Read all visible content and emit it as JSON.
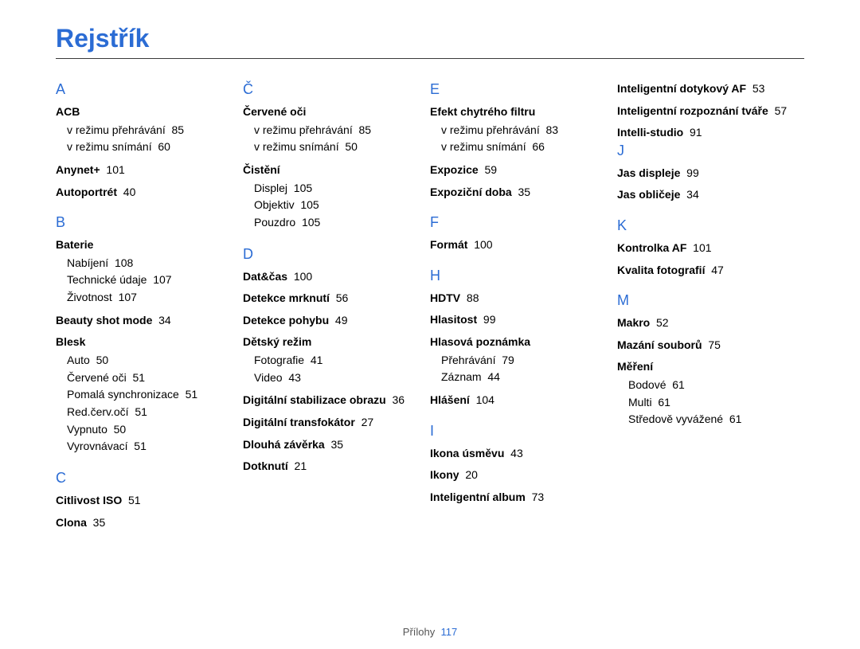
{
  "title": "Rejstřík",
  "footer": {
    "label": "Přílohy",
    "page": "117"
  },
  "colors": {
    "accent": "#2b6cd4",
    "text": "#000000",
    "rule": "#3a3a3a",
    "footer": "#555555"
  },
  "columns": [
    [
      {
        "type": "letter",
        "text": "A"
      },
      {
        "type": "head",
        "text": "ACB"
      },
      {
        "type": "sub",
        "text": "v režimu přehrávání",
        "page": "85"
      },
      {
        "type": "sub",
        "text": "v režimu snímání",
        "page": "60"
      },
      {
        "type": "entry",
        "text": "Anynet+",
        "page": "101"
      },
      {
        "type": "entry",
        "text": "Autoportrét",
        "page": "40"
      },
      {
        "type": "letter",
        "text": "B"
      },
      {
        "type": "head",
        "text": "Baterie"
      },
      {
        "type": "sub",
        "text": "Nabíjení",
        "page": "108"
      },
      {
        "type": "sub",
        "text": "Technické údaje",
        "page": "107"
      },
      {
        "type": "sub",
        "text": "Životnost",
        "page": "107"
      },
      {
        "type": "entry",
        "text": "Beauty shot mode",
        "page": "34"
      },
      {
        "type": "head",
        "text": "Blesk"
      },
      {
        "type": "sub",
        "text": "Auto",
        "page": "50"
      },
      {
        "type": "sub",
        "text": "Červené oči",
        "page": "51"
      },
      {
        "type": "sub",
        "text": "Pomalá synchronizace",
        "page": "51"
      },
      {
        "type": "sub",
        "text": "Red.červ.očí",
        "page": "51"
      },
      {
        "type": "sub",
        "text": "Vypnuto",
        "page": "50"
      },
      {
        "type": "sub",
        "text": "Vyrovnávací",
        "page": "51"
      },
      {
        "type": "letter",
        "text": "C"
      },
      {
        "type": "entry",
        "text": "Citlivost ISO",
        "page": "51"
      },
      {
        "type": "entry",
        "text": "Clona",
        "page": "35"
      }
    ],
    [
      {
        "type": "letter",
        "text": "Č"
      },
      {
        "type": "head",
        "text": "Červené oči"
      },
      {
        "type": "sub",
        "text": "v režimu přehrávání",
        "page": "85"
      },
      {
        "type": "sub",
        "text": "v režimu snímání",
        "page": "50"
      },
      {
        "type": "head",
        "text": "Čistění"
      },
      {
        "type": "sub",
        "text": "Displej",
        "page": "105"
      },
      {
        "type": "sub",
        "text": "Objektiv",
        "page": "105"
      },
      {
        "type": "sub",
        "text": "Pouzdro",
        "page": "105"
      },
      {
        "type": "letter",
        "text": "D"
      },
      {
        "type": "entry",
        "text": "Dat&čas",
        "page": "100"
      },
      {
        "type": "entry",
        "text": "Detekce mrknutí",
        "page": "56"
      },
      {
        "type": "entry",
        "text": "Detekce pohybu",
        "page": "49"
      },
      {
        "type": "head",
        "text": "Dětský režim"
      },
      {
        "type": "sub",
        "text": "Fotografie",
        "page": "41"
      },
      {
        "type": "sub",
        "text": "Video",
        "page": "43"
      },
      {
        "type": "entry",
        "text": "Digitální stabilizace obrazu",
        "page": "36"
      },
      {
        "type": "entry",
        "text": "Digitální transfokátor",
        "page": "27"
      },
      {
        "type": "entry",
        "text": "Dlouhá závěrka",
        "page": "35"
      },
      {
        "type": "entry",
        "text": "Dotknutí",
        "page": "21"
      }
    ],
    [
      {
        "type": "letter",
        "text": "E"
      },
      {
        "type": "head",
        "text": "Efekt chytrého filtru"
      },
      {
        "type": "sub",
        "text": "v režimu přehrávání",
        "page": "83"
      },
      {
        "type": "sub",
        "text": "v režimu snímání",
        "page": "66"
      },
      {
        "type": "entry",
        "text": "Expozice",
        "page": "59"
      },
      {
        "type": "entry",
        "text": "Expoziční doba",
        "page": "35"
      },
      {
        "type": "letter",
        "text": "F"
      },
      {
        "type": "entry",
        "text": "Formát",
        "page": "100"
      },
      {
        "type": "letter",
        "text": "H"
      },
      {
        "type": "entry",
        "text": "HDTV",
        "page": "88"
      },
      {
        "type": "entry",
        "text": "Hlasitost",
        "page": "99"
      },
      {
        "type": "head",
        "text": "Hlasová poznámka"
      },
      {
        "type": "sub",
        "text": "Přehrávání",
        "page": "79"
      },
      {
        "type": "sub",
        "text": "Záznam",
        "page": "44"
      },
      {
        "type": "entry",
        "text": "Hlášení",
        "page": "104"
      },
      {
        "type": "letter",
        "text": "I"
      },
      {
        "type": "entry",
        "text": "Ikona úsměvu",
        "page": "43"
      },
      {
        "type": "entry",
        "text": "Ikony",
        "page": "20"
      },
      {
        "type": "entry",
        "text": "Inteligentní album",
        "page": "73"
      }
    ],
    [
      {
        "type": "entry",
        "text": "Inteligentní dotykový AF",
        "page": "53",
        "first": true
      },
      {
        "type": "entry",
        "text": "Inteligentní rozpoznání tváře",
        "page": "57"
      },
      {
        "type": "entry",
        "text": "Intelli-studio",
        "page": "91"
      },
      {
        "type": "letter",
        "text": "J"
      },
      {
        "type": "entry",
        "text": "Jas displeje",
        "page": "99"
      },
      {
        "type": "entry",
        "text": "Jas obličeje",
        "page": "34"
      },
      {
        "type": "letter",
        "text": "K"
      },
      {
        "type": "entry",
        "text": "Kontrolka AF",
        "page": "101"
      },
      {
        "type": "entry",
        "text": "Kvalita fotografií",
        "page": "47"
      },
      {
        "type": "letter",
        "text": "M"
      },
      {
        "type": "entry",
        "text": "Makro",
        "page": "52"
      },
      {
        "type": "entry",
        "text": "Mazání souborů",
        "page": "75"
      },
      {
        "type": "head",
        "text": "Měření"
      },
      {
        "type": "sub",
        "text": "Bodové",
        "page": "61"
      },
      {
        "type": "sub",
        "text": "Multi",
        "page": "61"
      },
      {
        "type": "sub",
        "text": "Středově vyvážené",
        "page": "61"
      }
    ]
  ]
}
